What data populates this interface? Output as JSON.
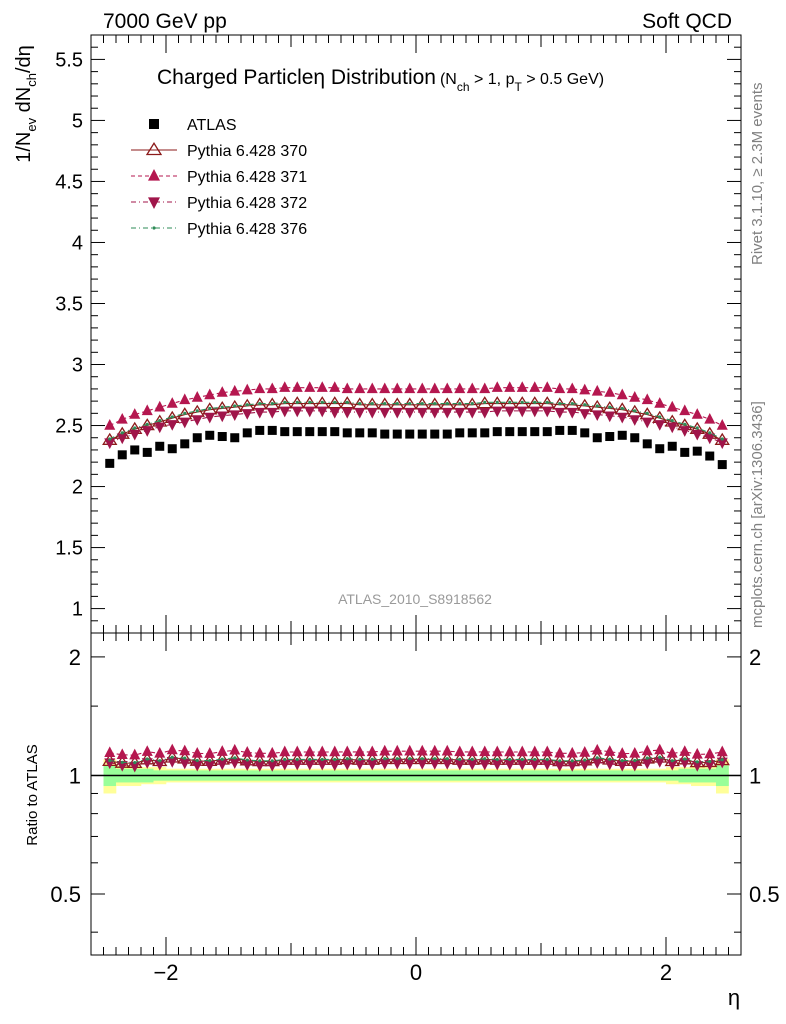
{
  "header": {
    "energy_label": "7000 GeV pp",
    "process_label": "Soft QCD"
  },
  "side_labels": {
    "rivet": "Rivet 3.1.10, ≥ 2.3M events",
    "mcplots": "mcplots.cern.ch [arXiv:1306.3436]"
  },
  "chart_data": {
    "type": "scatter",
    "title": "Charged Particleη Distribution",
    "title_cuts": {
      "p1": "(N",
      "s1": "ch",
      "p2": " > 1, p",
      "s2": "T",
      "p3": " > 0.5 GeV)"
    },
    "ylabel": {
      "p1": "1/N",
      "s1": "ev",
      "p2": " dN",
      "s2": "ch",
      "p3": "/dη"
    },
    "xlabel": "η",
    "ratio_ylabel": "Ratio to ATLAS",
    "analysis_tag": "ATLAS_2010_S8918562",
    "xlim": [
      -2.6,
      2.6
    ],
    "ylim": [
      0.8,
      5.7
    ],
    "ratio_ylim": [
      0.35,
      2.3
    ],
    "x_ticks": [
      "−2",
      "0",
      "2"
    ],
    "y_ticks": [
      "1",
      "1.5",
      "2",
      "2.5",
      "3",
      "3.5",
      "4",
      "4.5",
      "5",
      "5.5"
    ],
    "ratio_y_ticks": [
      "0.5",
      "1",
      "2"
    ],
    "legend_position": "top-left",
    "x": [
      -2.45,
      -2.35,
      -2.25,
      -2.15,
      -2.05,
      -1.95,
      -1.85,
      -1.75,
      -1.65,
      -1.55,
      -1.45,
      -1.35,
      -1.25,
      -1.15,
      -1.05,
      -0.95,
      -0.85,
      -0.75,
      -0.65,
      -0.55,
      -0.45,
      -0.35,
      -0.25,
      -0.15,
      -0.05,
      0.05,
      0.15,
      0.25,
      0.35,
      0.45,
      0.55,
      0.65,
      0.75,
      0.85,
      0.95,
      1.05,
      1.15,
      1.25,
      1.35,
      1.45,
      1.55,
      1.65,
      1.75,
      1.85,
      1.95,
      2.05,
      2.15,
      2.25,
      2.35,
      2.45
    ],
    "series": [
      {
        "name": "ATLAS",
        "marker": "square",
        "color": "#000000",
        "values": [
          2.19,
          2.26,
          2.3,
          2.28,
          2.33,
          2.31,
          2.35,
          2.4,
          2.42,
          2.41,
          2.4,
          2.44,
          2.46,
          2.46,
          2.45,
          2.45,
          2.45,
          2.45,
          2.45,
          2.44,
          2.44,
          2.44,
          2.43,
          2.43,
          2.43,
          2.43,
          2.43,
          2.43,
          2.44,
          2.44,
          2.44,
          2.45,
          2.45,
          2.45,
          2.45,
          2.45,
          2.46,
          2.46,
          2.44,
          2.4,
          2.41,
          2.42,
          2.4,
          2.35,
          2.31,
          2.33,
          2.28,
          2.29,
          2.25,
          2.18
        ],
        "band_inner": [
          0.06,
          0.04,
          0.04,
          0.04,
          0.03,
          0.03,
          0.03,
          0.03,
          0.03,
          0.03,
          0.03,
          0.03,
          0.03,
          0.03,
          0.03,
          0.03,
          0.03,
          0.03,
          0.03,
          0.03,
          0.03,
          0.03,
          0.03,
          0.03,
          0.03,
          0.03,
          0.03,
          0.03,
          0.03,
          0.03,
          0.03,
          0.03,
          0.03,
          0.03,
          0.03,
          0.03,
          0.03,
          0.03,
          0.03,
          0.03,
          0.03,
          0.03,
          0.03,
          0.03,
          0.03,
          0.03,
          0.04,
          0.04,
          0.04,
          0.06
        ],
        "band_outer": [
          0.1,
          0.06,
          0.06,
          0.05,
          0.05,
          0.04,
          0.04,
          0.04,
          0.04,
          0.04,
          0.04,
          0.04,
          0.04,
          0.04,
          0.04,
          0.04,
          0.04,
          0.04,
          0.04,
          0.04,
          0.04,
          0.04,
          0.04,
          0.04,
          0.04,
          0.04,
          0.04,
          0.04,
          0.04,
          0.04,
          0.04,
          0.04,
          0.04,
          0.04,
          0.04,
          0.04,
          0.04,
          0.04,
          0.04,
          0.04,
          0.04,
          0.04,
          0.04,
          0.04,
          0.04,
          0.05,
          0.05,
          0.06,
          0.06,
          0.1
        ]
      },
      {
        "name": "Pythia 6.428 370",
        "marker": "triangle-open",
        "color": "#8b1a1a",
        "values": [
          2.38,
          2.43,
          2.47,
          2.5,
          2.53,
          2.56,
          2.59,
          2.61,
          2.63,
          2.64,
          2.65,
          2.66,
          2.67,
          2.67,
          2.68,
          2.68,
          2.68,
          2.68,
          2.68,
          2.68,
          2.67,
          2.67,
          2.67,
          2.67,
          2.67,
          2.67,
          2.67,
          2.67,
          2.67,
          2.67,
          2.68,
          2.68,
          2.68,
          2.68,
          2.68,
          2.68,
          2.67,
          2.67,
          2.66,
          2.65,
          2.64,
          2.63,
          2.61,
          2.59,
          2.56,
          2.53,
          2.5,
          2.47,
          2.43,
          2.38
        ]
      },
      {
        "name": "Pythia 6.428 371",
        "marker": "triangle-up",
        "color": "#b5174f",
        "values": [
          2.5,
          2.55,
          2.59,
          2.62,
          2.65,
          2.68,
          2.71,
          2.73,
          2.75,
          2.77,
          2.78,
          2.79,
          2.8,
          2.8,
          2.81,
          2.81,
          2.81,
          2.81,
          2.81,
          2.8,
          2.8,
          2.8,
          2.8,
          2.8,
          2.8,
          2.8,
          2.8,
          2.8,
          2.8,
          2.8,
          2.8,
          2.81,
          2.81,
          2.81,
          2.81,
          2.81,
          2.8,
          2.8,
          2.79,
          2.78,
          2.77,
          2.75,
          2.73,
          2.71,
          2.68,
          2.65,
          2.62,
          2.59,
          2.55,
          2.5
        ]
      },
      {
        "name": "Pythia 6.428 372",
        "marker": "triangle-down",
        "color": "#a0154a",
        "values": [
          2.36,
          2.4,
          2.43,
          2.46,
          2.49,
          2.51,
          2.53,
          2.55,
          2.57,
          2.58,
          2.59,
          2.6,
          2.61,
          2.61,
          2.62,
          2.62,
          2.62,
          2.62,
          2.61,
          2.61,
          2.61,
          2.61,
          2.61,
          2.61,
          2.61,
          2.61,
          2.61,
          2.61,
          2.61,
          2.61,
          2.61,
          2.62,
          2.62,
          2.62,
          2.62,
          2.62,
          2.61,
          2.61,
          2.6,
          2.59,
          2.58,
          2.57,
          2.55,
          2.53,
          2.51,
          2.49,
          2.46,
          2.43,
          2.4,
          2.36
        ]
      },
      {
        "name": "Pythia 6.428 376",
        "marker": "dot",
        "color": "#2e8b57",
        "values": [
          2.39,
          2.44,
          2.48,
          2.51,
          2.54,
          2.57,
          2.6,
          2.62,
          2.64,
          2.65,
          2.66,
          2.67,
          2.68,
          2.68,
          2.69,
          2.69,
          2.69,
          2.69,
          2.69,
          2.69,
          2.68,
          2.68,
          2.68,
          2.68,
          2.68,
          2.68,
          2.68,
          2.68,
          2.68,
          2.68,
          2.69,
          2.69,
          2.69,
          2.69,
          2.69,
          2.69,
          2.68,
          2.68,
          2.67,
          2.66,
          2.65,
          2.64,
          2.62,
          2.6,
          2.57,
          2.54,
          2.51,
          2.48,
          2.44,
          2.39
        ]
      }
    ]
  }
}
